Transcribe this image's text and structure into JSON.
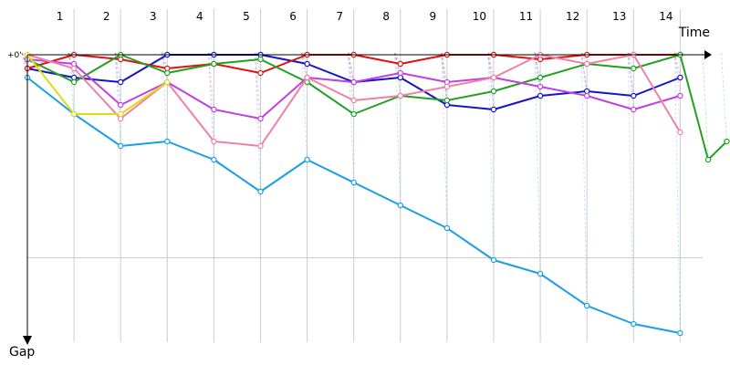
{
  "chart_data": {
    "type": "line",
    "title": "",
    "xlabel": "Time",
    "ylabel": "Gap",
    "y_tick_label": "+0'",
    "x_labels": [
      "1",
      "2",
      "3",
      "4",
      "5",
      "6",
      "7",
      "8",
      "9",
      "10",
      "11",
      "12",
      "13",
      "14"
    ],
    "x_range": [
      0,
      15
    ],
    "y_range_gap_seconds": [
      0,
      60
    ],
    "grid": true,
    "legend": "none",
    "series": [
      {
        "color": "#1a9ee8",
        "points": [
          [
            0,
            5
          ],
          [
            1,
            13
          ],
          [
            2,
            20
          ],
          [
            3,
            19
          ],
          [
            4,
            23
          ],
          [
            5,
            30
          ],
          [
            6,
            23
          ],
          [
            7,
            28
          ],
          [
            8,
            33
          ],
          [
            9,
            38
          ],
          [
            10,
            45
          ],
          [
            11,
            48
          ],
          [
            12,
            55
          ],
          [
            13,
            59
          ],
          [
            14,
            61
          ]
        ]
      },
      {
        "color": "#1414c8",
        "points": [
          [
            0,
            3
          ],
          [
            1,
            5
          ],
          [
            2,
            6
          ],
          [
            3,
            0
          ],
          [
            4,
            0
          ],
          [
            5,
            0
          ],
          [
            6,
            2
          ],
          [
            7,
            6
          ],
          [
            8,
            5
          ],
          [
            9,
            11
          ],
          [
            10,
            12
          ],
          [
            11,
            9
          ],
          [
            12,
            8
          ],
          [
            13,
            9
          ],
          [
            14,
            5
          ]
        ]
      },
      {
        "color": "#e01010",
        "points": [
          [
            0,
            3
          ],
          [
            1,
            0
          ],
          [
            2,
            1
          ],
          [
            3,
            3
          ],
          [
            4,
            2
          ],
          [
            5,
            4
          ],
          [
            6,
            0
          ],
          [
            7,
            0
          ],
          [
            8,
            2
          ],
          [
            9,
            0
          ],
          [
            10,
            0
          ],
          [
            11,
            1
          ],
          [
            12,
            0
          ],
          [
            13,
            0
          ],
          [
            14,
            0
          ]
        ]
      },
      {
        "color": "#22a022",
        "points": [
          [
            0,
            1
          ],
          [
            1,
            6
          ],
          [
            2,
            0
          ],
          [
            3,
            4
          ],
          [
            4,
            2
          ],
          [
            5,
            1
          ],
          [
            6,
            6
          ],
          [
            7,
            13
          ],
          [
            8,
            9
          ],
          [
            9,
            10
          ],
          [
            10,
            8
          ],
          [
            11,
            5
          ],
          [
            12,
            2
          ],
          [
            13,
            3
          ],
          [
            14,
            0
          ],
          [
            14.6,
            23
          ],
          [
            15.0,
            19
          ]
        ]
      },
      {
        "color": "#c040e0",
        "points": [
          [
            0,
            1
          ],
          [
            1,
            2
          ],
          [
            2,
            11
          ],
          [
            3,
            6
          ],
          [
            4,
            12
          ],
          [
            5,
            14
          ],
          [
            6,
            5
          ],
          [
            7,
            6
          ],
          [
            8,
            4
          ],
          [
            9,
            6
          ],
          [
            10,
            5
          ],
          [
            11,
            7
          ],
          [
            12,
            9
          ],
          [
            13,
            12
          ],
          [
            14,
            9
          ]
        ]
      },
      {
        "color": "#f080a8",
        "points": [
          [
            0,
            0
          ],
          [
            1,
            3
          ],
          [
            2,
            14
          ],
          [
            3,
            6
          ],
          [
            4,
            19
          ],
          [
            5,
            20
          ],
          [
            6,
            5
          ],
          [
            7,
            10
          ],
          [
            8,
            9
          ],
          [
            9,
            7
          ],
          [
            10,
            5
          ],
          [
            11,
            0
          ],
          [
            12,
            2
          ],
          [
            13,
            0
          ],
          [
            14,
            17
          ]
        ]
      },
      {
        "color": "#dddd10",
        "points": [
          [
            0,
            0
          ],
          [
            1,
            13
          ],
          [
            2,
            13
          ],
          [
            3,
            6
          ]
        ]
      }
    ]
  }
}
